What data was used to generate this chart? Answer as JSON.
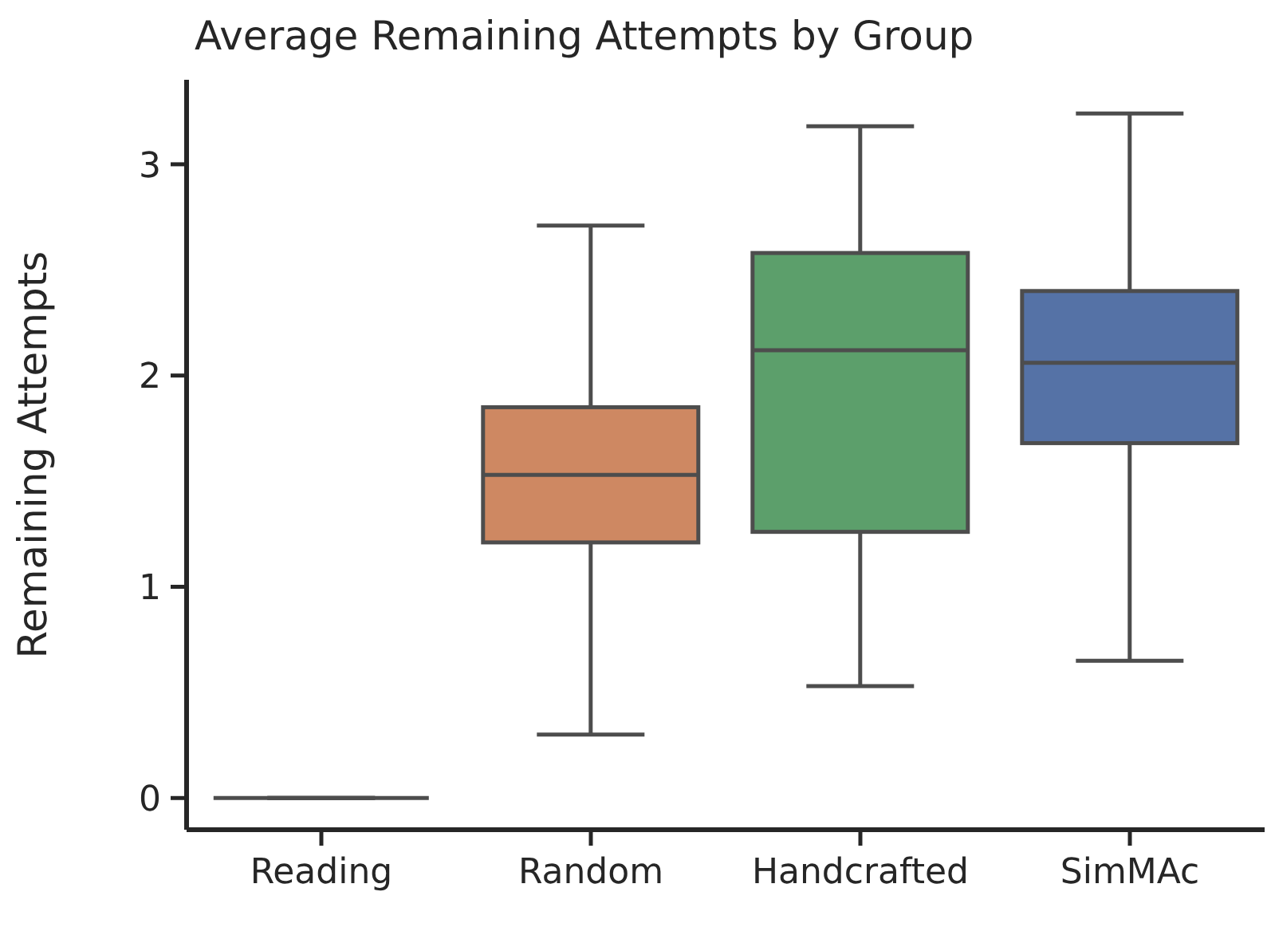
{
  "chart_data": {
    "type": "box",
    "title": "Average Remaining Attempts by Group",
    "ylabel": "Remaining Attempts",
    "categories": [
      "Reading",
      "Random",
      "Handcrafted",
      "SimMAc"
    ],
    "boxes": [
      {
        "low": 0,
        "q1": 0,
        "median": 0,
        "q3": 0,
        "high": 0
      },
      {
        "low": 0.3,
        "q1": 1.21,
        "median": 1.53,
        "q3": 1.85,
        "high": 2.71
      },
      {
        "low": 0.53,
        "q1": 1.26,
        "median": 2.12,
        "q3": 2.58,
        "high": 3.18
      },
      {
        "low": 0.65,
        "q1": 1.68,
        "median": 2.06,
        "q3": 2.4,
        "high": 3.24
      }
    ],
    "colors": [
      "#4d4d4d",
      "#ce8862",
      "#5c9f6b",
      "#5572a6"
    ],
    "ylim": [
      -0.15,
      3.4
    ],
    "yticks": [
      0,
      1,
      2,
      3
    ],
    "grid": false
  }
}
